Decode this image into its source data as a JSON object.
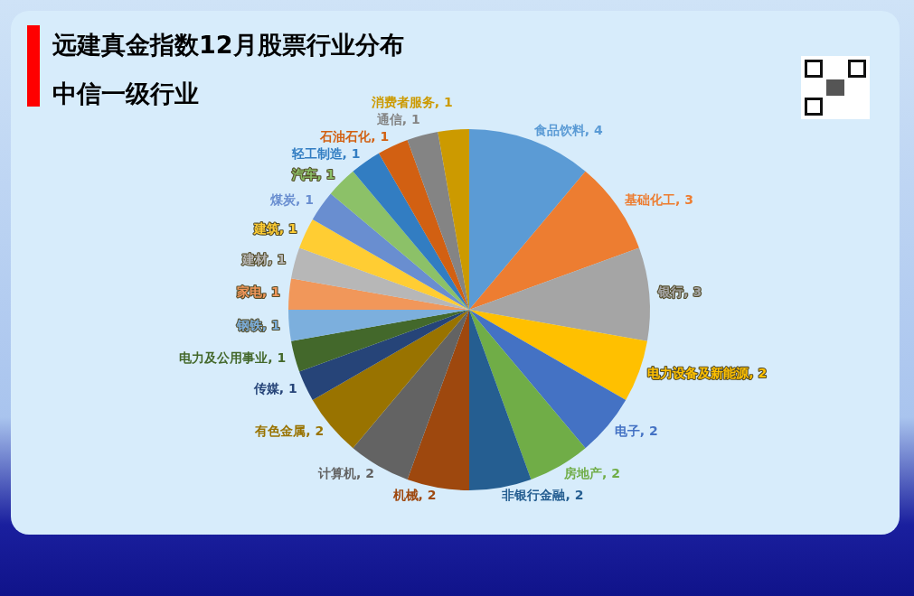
{
  "chart_data": {
    "type": "pie",
    "title": "远建真金指数12月股票行业分布",
    "subtitle": "中信一级行业",
    "categories": [
      "食品饮料",
      "基础化工",
      "银行",
      "电力设备及新能源",
      "电子",
      "房地产",
      "非银行金融",
      "机械",
      "计算机",
      "有色金属",
      "传媒",
      "电力及公用事业",
      "钢铁",
      "家电",
      "建材",
      "建筑",
      "煤炭",
      "汽车",
      "轻工制造",
      "石油石化",
      "通信",
      "消费者服务"
    ],
    "values": [
      4,
      3,
      3,
      2,
      2,
      2,
      2,
      2,
      2,
      2,
      1,
      1,
      1,
      1,
      1,
      1,
      1,
      1,
      1,
      1,
      1,
      1
    ],
    "colors": [
      "#5b9bd5",
      "#ed7d31",
      "#a5a5a5",
      "#ffc000",
      "#4472c4",
      "#70ad47",
      "#255e91",
      "#9e480e",
      "#636363",
      "#997300",
      "#264478",
      "#43682b",
      "#7cafdd",
      "#f1975a",
      "#b7b7b7",
      "#ffcd33",
      "#698ed0",
      "#8cc168",
      "#327dc2",
      "#d26012",
      "#848484",
      "#cc9a00"
    ],
    "value_labels": [
      ", 4",
      ", 3",
      ", 3",
      ", 2",
      ", 2",
      ", 2",
      ", 2",
      ", 2",
      ", 2",
      ", 2",
      ", 1",
      ", 1",
      ", 1",
      ", 1",
      ", 1",
      ", 1",
      ", 1",
      ", 1",
      ", 1",
      ", 1",
      ", 1",
      ", 1"
    ],
    "legend": false
  }
}
